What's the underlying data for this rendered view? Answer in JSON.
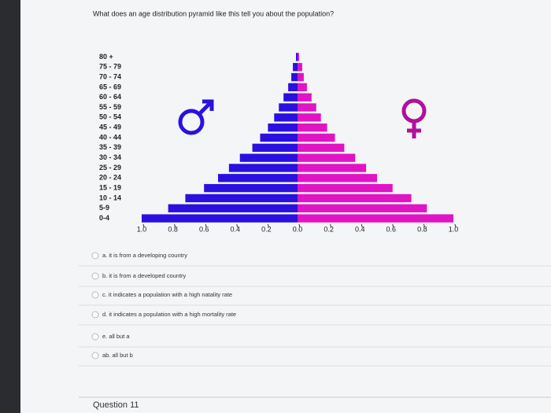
{
  "question": "What does an age distribution pyramid like this tell you about the population?",
  "chart_data": {
    "type": "bar",
    "orientation": "horizontal",
    "categories": [
      "0-4",
      "5-9",
      "10 - 14",
      "15 - 19",
      "20 - 24",
      "25 - 29",
      "30 - 34",
      "35 - 39",
      "40 - 44",
      "45 - 49",
      "50 - 54",
      "55 - 59",
      "60 - 64",
      "65 - 69",
      "70 - 74",
      "75 - 79",
      "80 +"
    ],
    "series": [
      {
        "color": "#2a10e0",
        "values": [
          1.0,
          0.83,
          0.72,
          0.6,
          0.51,
          0.44,
          0.37,
          0.29,
          0.24,
          0.19,
          0.15,
          0.12,
          0.09,
          0.06,
          0.04,
          0.03,
          0.01
        ]
      },
      {
        "color": "#e014c4",
        "values": [
          1.0,
          0.83,
          0.73,
          0.61,
          0.51,
          0.44,
          0.37,
          0.3,
          0.24,
          0.19,
          0.15,
          0.12,
          0.09,
          0.06,
          0.04,
          0.03,
          0.01
        ]
      }
    ],
    "xlim": [
      -1,
      1
    ],
    "xticks": [
      {
        "value": -1,
        "label": "1.0"
      },
      {
        "value": -0.8,
        "label": "0.8"
      },
      {
        "value": -0.6,
        "label": "0.6"
      },
      {
        "value": -0.4,
        "label": "0.4"
      },
      {
        "value": -0.2,
        "label": "0.2"
      },
      {
        "value": 0,
        "label": "0.0"
      },
      0.2,
      0.4,
      0.6,
      0.8,
      {
        "value": 1,
        "label": "1.0"
      }
    ]
  },
  "options": [
    "a. it is from a developing country",
    "b. it is from a developed country",
    "c. it indicates a population with a high natality rate",
    "d. it indicates a population with a high mortality rate",
    "e. all but a",
    "ab. all but b"
  ],
  "footer": "Question 11"
}
